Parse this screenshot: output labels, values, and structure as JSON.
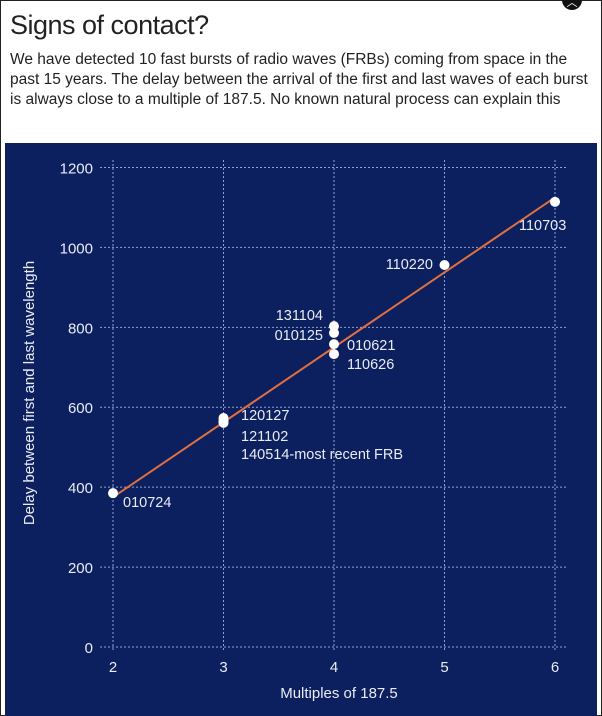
{
  "header": {
    "title": "Signs of contact?",
    "subtitle": "We have detected 10 fast bursts of radio waves (FRBs) coming from space in the past 15 years. The delay between the arrival of the first and last waves of each burst is always close to a multiple of 187.5. No known natural process can explain this"
  },
  "close_icon": "chevron-up-icon",
  "chart_data": {
    "type": "scatter",
    "xlabel": "Multiples of 187.5",
    "ylabel": "Delay between first and last wavelength",
    "xlim": [
      2,
      6
    ],
    "ylim": [
      0,
      1200
    ],
    "xticks": [
      "2",
      "3",
      "4",
      "5",
      "6"
    ],
    "yticks": [
      "0",
      "200",
      "400",
      "600",
      "800",
      "1000",
      "1200"
    ],
    "grid": true,
    "points": [
      {
        "label": "010724",
        "x": 2,
        "y": 385
      },
      {
        "label": "120127",
        "x": 3,
        "y": 573
      },
      {
        "label": "121102",
        "x": 3,
        "y": 561
      },
      {
        "label": "140514-most recent FRB",
        "x": 3,
        "y": 566
      },
      {
        "label": "131104",
        "x": 4,
        "y": 803
      },
      {
        "label": "010125",
        "x": 4,
        "y": 786
      },
      {
        "label": "010621",
        "x": 4,
        "y": 758
      },
      {
        "label": "110626",
        "x": 4,
        "y": 733
      },
      {
        "label": "110220",
        "x": 5,
        "y": 956
      },
      {
        "label": "110703",
        "x": 6,
        "y": 1114
      }
    ],
    "trendline": {
      "slope": 187.5,
      "intercept": 0,
      "x_range": [
        2,
        6
      ]
    },
    "colors": {
      "background": "#0c1f5e",
      "points": "#ffffff",
      "trendline": "#e07040",
      "grid": "#8fa0d0"
    }
  }
}
